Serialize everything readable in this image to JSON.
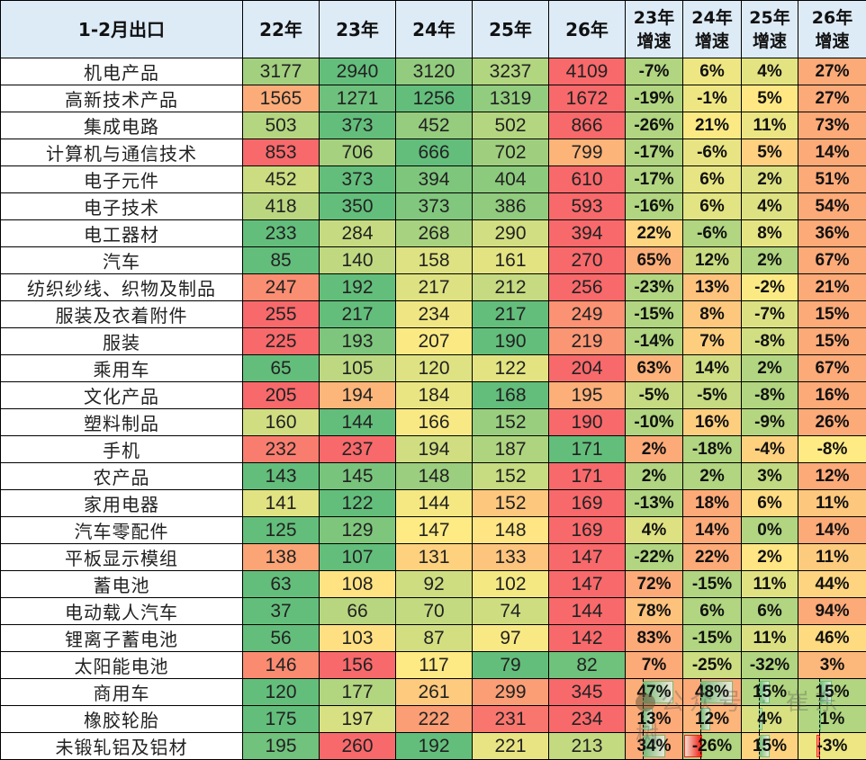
{
  "table": {
    "header": {
      "label": "1-2月出口",
      "years": [
        "22年",
        "23年",
        "24年",
        "25年",
        "26年"
      ],
      "growth": [
        {
          "line1": "23年",
          "line2": "增速"
        },
        {
          "line1": "24年",
          "line2": "增速"
        },
        {
          "line1": "25年",
          "line2": "增速"
        },
        {
          "line1": "26年",
          "line2": "增速"
        }
      ]
    },
    "colors": {
      "header_bg": "#ddebf7",
      "red": "#f8696b",
      "orange": "#fbaa77",
      "yellow": "#ffeb84",
      "lime": "#cddd82",
      "green": "#63be7b"
    },
    "rows": [
      {
        "label": "机电产品",
        "values": [
          "3177",
          "2940",
          "3120",
          "3237",
          "4109"
        ],
        "growth": [
          "-7%",
          "6%",
          "4%",
          "27%"
        ]
      },
      {
        "label": "高新技术产品",
        "values": [
          "1565",
          "1271",
          "1256",
          "1319",
          "1672"
        ],
        "growth": [
          "-19%",
          "-1%",
          "5%",
          "27%"
        ]
      },
      {
        "label": "集成电路",
        "values": [
          "503",
          "373",
          "452",
          "502",
          "866"
        ],
        "growth": [
          "-26%",
          "21%",
          "11%",
          "73%"
        ]
      },
      {
        "label": "计算机与通信技术",
        "values": [
          "853",
          "706",
          "666",
          "702",
          "799"
        ],
        "growth": [
          "-17%",
          "-6%",
          "5%",
          "14%"
        ]
      },
      {
        "label": "电子元件",
        "values": [
          "452",
          "373",
          "394",
          "404",
          "610"
        ],
        "growth": [
          "-17%",
          "6%",
          "2%",
          "51%"
        ]
      },
      {
        "label": "电子技术",
        "values": [
          "418",
          "350",
          "373",
          "386",
          "593"
        ],
        "growth": [
          "-16%",
          "6%",
          "4%",
          "54%"
        ]
      },
      {
        "label": "电工器材",
        "values": [
          "233",
          "284",
          "268",
          "290",
          "394"
        ],
        "growth": [
          "22%",
          "-6%",
          "8%",
          "36%"
        ]
      },
      {
        "label": "汽车",
        "values": [
          "85",
          "140",
          "158",
          "161",
          "270"
        ],
        "growth": [
          "65%",
          "12%",
          "2%",
          "67%"
        ]
      },
      {
        "label": "纺织纱线、织物及制品",
        "values": [
          "247",
          "192",
          "217",
          "212",
          "256"
        ],
        "growth": [
          "-23%",
          "13%",
          "-2%",
          "21%"
        ]
      },
      {
        "label": "服装及衣着附件",
        "values": [
          "255",
          "217",
          "234",
          "217",
          "249"
        ],
        "growth": [
          "-15%",
          "8%",
          "-7%",
          "15%"
        ]
      },
      {
        "label": "服装",
        "values": [
          "225",
          "193",
          "207",
          "190",
          "219"
        ],
        "growth": [
          "-14%",
          "7%",
          "-8%",
          "15%"
        ]
      },
      {
        "label": "乘用车",
        "values": [
          "65",
          "105",
          "120",
          "122",
          "204"
        ],
        "growth": [
          "63%",
          "14%",
          "2%",
          "67%"
        ]
      },
      {
        "label": "文化产品",
        "values": [
          "205",
          "194",
          "184",
          "168",
          "195"
        ],
        "growth": [
          "-5%",
          "-5%",
          "-8%",
          "16%"
        ]
      },
      {
        "label": "塑料制品",
        "values": [
          "160",
          "144",
          "166",
          "152",
          "190"
        ],
        "growth": [
          "-10%",
          "16%",
          "-9%",
          "26%"
        ]
      },
      {
        "label": "手机",
        "values": [
          "232",
          "237",
          "194",
          "187",
          "171"
        ],
        "growth": [
          "2%",
          "-18%",
          "-4%",
          "-8%"
        ]
      },
      {
        "label": "农产品",
        "values": [
          "143",
          "145",
          "148",
          "152",
          "171"
        ],
        "growth": [
          "2%",
          "2%",
          "3%",
          "12%"
        ]
      },
      {
        "label": "家用电器",
        "values": [
          "141",
          "122",
          "144",
          "152",
          "169"
        ],
        "growth": [
          "-13%",
          "18%",
          "6%",
          "11%"
        ]
      },
      {
        "label": "汽车零配件",
        "values": [
          "125",
          "129",
          "147",
          "148",
          "169"
        ],
        "growth": [
          "4%",
          "14%",
          "0%",
          "14%"
        ]
      },
      {
        "label": "平板显示模组",
        "values": [
          "138",
          "107",
          "131",
          "133",
          "147"
        ],
        "growth": [
          "-22%",
          "22%",
          "2%",
          "11%"
        ]
      },
      {
        "label": "蓄电池",
        "values": [
          "63",
          "108",
          "92",
          "102",
          "147"
        ],
        "growth": [
          "72%",
          "-15%",
          "11%",
          "44%"
        ]
      },
      {
        "label": "电动载人汽车",
        "values": [
          "37",
          "66",
          "70",
          "74",
          "144"
        ],
        "growth": [
          "78%",
          "6%",
          "6%",
          "94%"
        ]
      },
      {
        "label": "锂离子蓄电池",
        "values": [
          "56",
          "103",
          "87",
          "97",
          "142"
        ],
        "growth": [
          "83%",
          "-15%",
          "11%",
          "46%"
        ]
      },
      {
        "label": "太阳能电池",
        "values": [
          "146",
          "156",
          "117",
          "79",
          "82"
        ],
        "growth": [
          "7%",
          "-25%",
          "-32%",
          "3%"
        ]
      },
      {
        "label": "商用车",
        "values": [
          "120",
          "177",
          "261",
          "299",
          "345"
        ],
        "growth": [
          "47%",
          "48%",
          "15%",
          "15%"
        ]
      },
      {
        "label": "橡胶轮胎",
        "values": [
          "175",
          "197",
          "222",
          "231",
          "234"
        ],
        "growth": [
          "13%",
          "12%",
          "4%",
          "1%"
        ]
      },
      {
        "label": "未锻轧铝及铝材",
        "values": [
          "195",
          "260",
          "192",
          "221",
          "213"
        ],
        "growth": [
          "34%",
          "-26%",
          "15%",
          "-3%"
        ]
      }
    ]
  },
  "watermark": {
    "icon": "wechat-icon",
    "text": "公众号 · 崔东树"
  }
}
